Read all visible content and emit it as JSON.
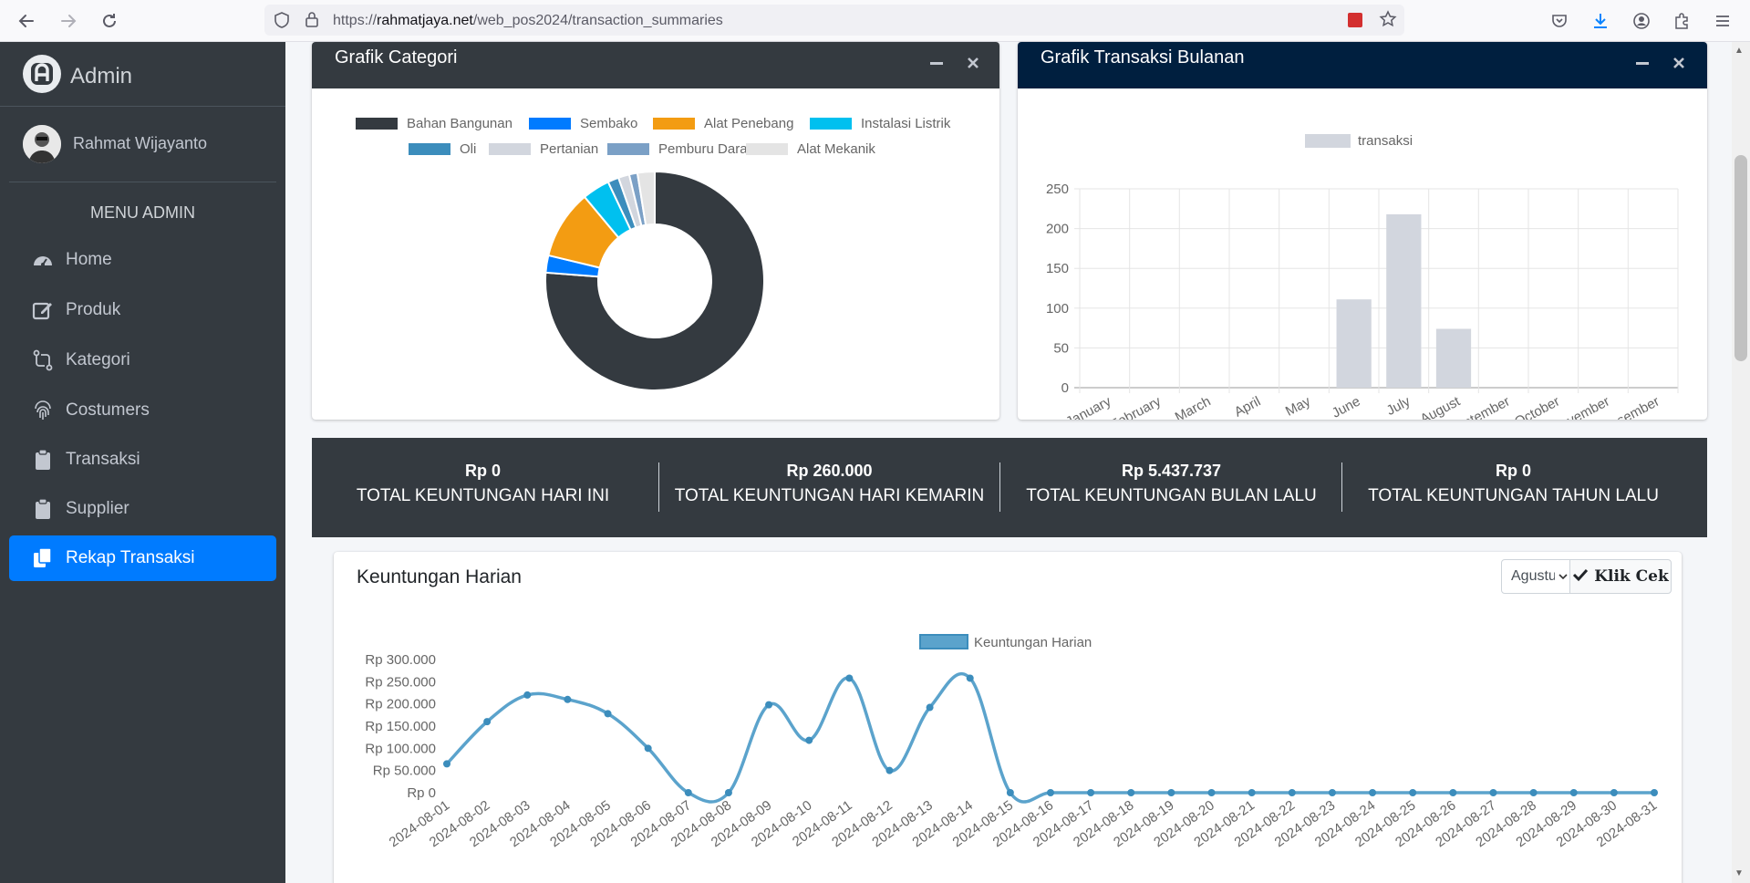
{
  "browser": {
    "url_prefix": "https://",
    "url_domain": "rahmatjaya.net",
    "url_path": "/web_pos2024/transaction_summaries"
  },
  "sidebar": {
    "brand": "Admin",
    "user": "Rahmat Wijayanto",
    "menu_header": "MENU ADMIN",
    "items": [
      {
        "label": "Home",
        "icon": "dashboard-icon"
      },
      {
        "label": "Produk",
        "icon": "edit-icon"
      },
      {
        "label": "Kategori",
        "icon": "code-compare-icon"
      },
      {
        "label": "Costumers",
        "icon": "fingerprint-icon"
      },
      {
        "label": "Transaksi",
        "icon": "clipboard-icon"
      },
      {
        "label": "Supplier",
        "icon": "clipboard-icon"
      },
      {
        "label": "Rekap Transaksi",
        "icon": "copy-icon",
        "active": true
      }
    ]
  },
  "cards": {
    "categori_title": "Grafik Categori",
    "bulanan_title": "Grafik Transaksi Bulanan",
    "harian_title": "Keuntungan Harian"
  },
  "summary": [
    {
      "value": "Rp 0",
      "label": "TOTAL KEUNTUNGAN HARI INI"
    },
    {
      "value": "Rp 260.000",
      "label": "TOTAL KEUNTUNGAN HARI KEMARIN"
    },
    {
      "value": "Rp 5.437.737",
      "label": "TOTAL KEUNTUNGAN BULAN LALU"
    },
    {
      "value": "Rp 0",
      "label": "TOTAL KEUNTUNGAN TAHUN LALU"
    }
  ],
  "controls": {
    "month_select": "Agustus",
    "check_button": "Klik Cek"
  },
  "colors": {
    "sidebar": "#343a40",
    "active": "#007bff",
    "navy": "#001f3f",
    "line": "#5ba3cc"
  },
  "chart_data": [
    {
      "type": "pie",
      "style": "doughnut",
      "labels": [
        "Bahan Bangunan",
        "Sembako",
        "Alat Penebang",
        "Instalasi Listrik",
        "Oli",
        "Pertanian",
        "Pemburu Darat",
        "Alat Mekanik"
      ],
      "values": [
        75,
        2.5,
        10,
        4,
        1.6,
        1.6,
        1.2,
        2.5
      ],
      "colors": [
        "#343a40",
        "#007bff",
        "#f39c12",
        "#00c0ef",
        "#3c8dbc",
        "#d2d6de",
        "#7ba0c6",
        "#e4e4e4"
      ],
      "legend": "top"
    },
    {
      "type": "bar",
      "series": [
        {
          "name": "transaksi",
          "values": [
            0,
            0,
            0,
            0,
            0,
            111,
            218,
            74,
            0,
            0,
            0,
            0
          ]
        }
      ],
      "categories": [
        "January",
        "February",
        "March",
        "April",
        "May",
        "June",
        "July",
        "August",
        "September",
        "October",
        "November",
        "Desember"
      ],
      "ylim": [
        0,
        250
      ],
      "yticks": [
        "0",
        "50",
        "100",
        "150",
        "200",
        "250"
      ],
      "grid": true,
      "legend": "top"
    },
    {
      "type": "line",
      "series": [
        {
          "name": "Keuntungan Harian",
          "values": [
            65000,
            160000,
            220000,
            210000,
            178000,
            100000,
            0,
            0,
            198000,
            118000,
            258000,
            50000,
            192000,
            258000,
            0,
            0,
            0,
            0,
            0,
            0,
            0,
            0,
            0,
            0,
            0,
            0,
            0,
            0,
            0,
            0,
            0
          ]
        }
      ],
      "categories": [
        "2024-08-01",
        "2024-08-02",
        "2024-08-03",
        "2024-08-04",
        "2024-08-05",
        "2024-08-06",
        "2024-08-07",
        "2024-08-08",
        "2024-08-09",
        "2024-08-10",
        "2024-08-11",
        "2024-08-12",
        "2024-08-13",
        "2024-08-14",
        "2024-08-15",
        "2024-08-16",
        "2024-08-17",
        "2024-08-18",
        "2024-08-19",
        "2024-08-20",
        "2024-08-21",
        "2024-08-22",
        "2024-08-23",
        "2024-08-24",
        "2024-08-25",
        "2024-08-26",
        "2024-08-27",
        "2024-08-28",
        "2024-08-29",
        "2024-08-30",
        "2024-08-31"
      ],
      "ylim": [
        0,
        300000
      ],
      "yticks": [
        "Rp 0",
        "Rp 50.000",
        "Rp 100.000",
        "Rp 150.000",
        "Rp 200.000",
        "Rp 250.000",
        "Rp 300.000"
      ],
      "grid": false,
      "legend": "top"
    }
  ]
}
